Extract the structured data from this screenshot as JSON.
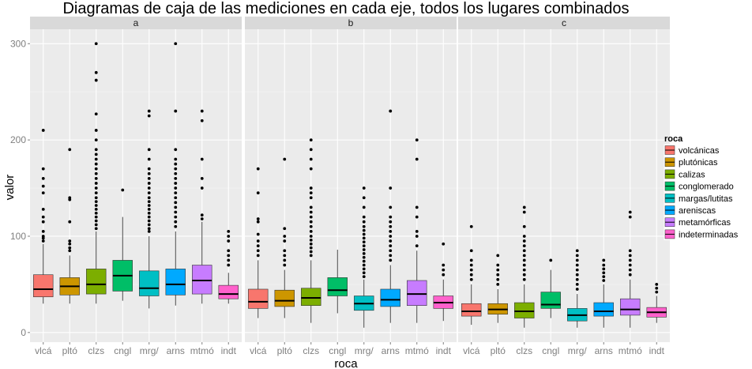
{
  "chart_data": {
    "type": "boxplot",
    "title": "Diagramas de caja de las mediciones en cada eje, todos los lugares combinados",
    "xlabel": "roca",
    "ylabel": "valor",
    "ylim": [
      -10,
      315
    ],
    "yticks": [
      0,
      100,
      200,
      300
    ],
    "categories": [
      "vlcá",
      "pltó",
      "clzs",
      "cngl",
      "mrg/",
      "arns",
      "mtmó",
      "indt"
    ],
    "legend": {
      "title": "roca",
      "position": "right",
      "entries": [
        {
          "label": "volcánicas",
          "color": "#F8766D"
        },
        {
          "label": "plutónicas",
          "color": "#CD9600"
        },
        {
          "label": "calizas",
          "color": "#7CAE00"
        },
        {
          "label": "conglomerado",
          "color": "#00BE67"
        },
        {
          "label": "margas/lutitas",
          "color": "#00BFC4"
        },
        {
          "label": "areniscas",
          "color": "#00A9FF"
        },
        {
          "label": "metamórficas",
          "color": "#C77CFF"
        },
        {
          "label": "indeterminadas",
          "color": "#FF61CC"
        }
      ]
    },
    "panels": [
      {
        "label": "a",
        "boxes": [
          {
            "min": 30,
            "q1": 37,
            "median": 45,
            "q3": 60,
            "max": 92,
            "outliers": [
              95,
              98,
              100,
              105,
              115,
              120,
              128,
              145,
              152,
              160,
              170,
              210
            ]
          },
          {
            "min": 30,
            "q1": 39,
            "median": 48,
            "q3": 57,
            "max": 80,
            "outliers": [
              85,
              88,
              92,
              95,
              115,
              138,
              140,
              190
            ]
          },
          {
            "min": 30,
            "q1": 40,
            "median": 50,
            "q3": 66,
            "max": 105,
            "outliers": [
              108,
              112,
              116,
              120,
              124,
              128,
              132,
              136,
              140,
              145,
              150,
              155,
              160,
              165,
              170,
              175,
              180,
              185,
              190,
              200,
              210,
              227,
              262,
              270,
              300
            ]
          },
          {
            "min": 33,
            "q1": 43,
            "median": 59,
            "q3": 75,
            "max": 120,
            "outliers": [
              148
            ]
          },
          {
            "min": 25,
            "q1": 38,
            "median": 46,
            "q3": 64,
            "max": 100,
            "outliers": [
              105,
              108,
              112,
              116,
              120,
              124,
              128,
              132,
              136,
              140,
              145,
              150,
              155,
              160,
              165,
              170,
              180,
              190,
              225,
              230
            ]
          },
          {
            "min": 28,
            "q1": 39,
            "median": 50,
            "q3": 66,
            "max": 105,
            "outliers": [
              110,
              115,
              120,
              125,
              130,
              135,
              140,
              145,
              150,
              155,
              160,
              165,
              170,
              175,
              180,
              190,
              230,
              300
            ]
          },
          {
            "min": 30,
            "q1": 40,
            "median": 54,
            "q3": 70,
            "max": 115,
            "outliers": [
              118,
              122,
              150,
              160,
              180,
              220,
              230
            ]
          },
          {
            "min": 30,
            "q1": 35,
            "median": 40,
            "q3": 49,
            "max": 62,
            "outliers": [
              70,
              75,
              80,
              85,
              95,
              100,
              105
            ]
          }
        ]
      },
      {
        "label": "b",
        "boxes": [
          {
            "min": 15,
            "q1": 25,
            "median": 32,
            "q3": 45,
            "max": 75,
            "outliers": [
              80,
              85,
              90,
              95,
              102,
              115,
              118,
              145,
              170
            ]
          },
          {
            "min": 15,
            "q1": 27,
            "median": 33,
            "q3": 44,
            "max": 65,
            "outliers": [
              70,
              75,
              80,
              85,
              95,
              100,
              108,
              180
            ]
          },
          {
            "min": 10,
            "q1": 28,
            "median": 36,
            "q3": 46,
            "max": 75,
            "outliers": [
              80,
              84,
              88,
              92,
              96,
              100,
              105,
              110,
              115,
              120,
              125,
              130,
              140,
              145,
              150,
              170,
              180,
              190,
              200
            ]
          },
          {
            "min": 20,
            "q1": 38,
            "median": 44,
            "q3": 57,
            "max": 86,
            "outliers": []
          },
          {
            "min": 5,
            "q1": 23,
            "median": 30,
            "q3": 38,
            "max": 55,
            "outliers": [
              58,
              62,
              66,
              70,
              74,
              78,
              82,
              86,
              90,
              94,
              98,
              102,
              106,
              110,
              115,
              120,
              130,
              140,
              150
            ]
          },
          {
            "min": 10,
            "q1": 27,
            "median": 34,
            "q3": 45,
            "max": 70,
            "outliers": [
              75,
              80,
              85,
              90,
              95,
              100,
              105,
              110,
              115,
              120,
              130,
              150,
              230
            ]
          },
          {
            "min": 10,
            "q1": 28,
            "median": 40,
            "q3": 54,
            "max": 85,
            "outliers": [
              90,
              100,
              105,
              120,
              130,
              180,
              200
            ]
          },
          {
            "min": 12,
            "q1": 25,
            "median": 31,
            "q3": 38,
            "max": 55,
            "outliers": [
              60,
              65,
              70,
              92
            ]
          }
        ]
      },
      {
        "label": "c",
        "boxes": [
          {
            "min": 8,
            "q1": 17,
            "median": 22,
            "q3": 30,
            "max": 50,
            "outliers": [
              55,
              60,
              65,
              70,
              75,
              85,
              110
            ]
          },
          {
            "min": 10,
            "q1": 19,
            "median": 24,
            "q3": 30,
            "max": 45,
            "outliers": [
              50,
              55,
              60,
              65,
              70,
              80
            ]
          },
          {
            "min": 5,
            "q1": 15,
            "median": 22,
            "q3": 31,
            "max": 50,
            "outliers": [
              55,
              60,
              65,
              70,
              75,
              80,
              85,
              90,
              95,
              100,
              110,
              125,
              130
            ]
          },
          {
            "min": 15,
            "q1": 25,
            "median": 29,
            "q3": 42,
            "max": 65,
            "outliers": [
              75
            ]
          },
          {
            "min": 5,
            "q1": 12,
            "median": 18,
            "q3": 25,
            "max": 40,
            "outliers": [
              45,
              50,
              55,
              60,
              65,
              70,
              75,
              80,
              85
            ]
          },
          {
            "min": 5,
            "q1": 17,
            "median": 22,
            "q3": 31,
            "max": 50,
            "outliers": [
              54,
              58,
              62,
              66,
              70,
              75
            ]
          },
          {
            "min": 5,
            "q1": 18,
            "median": 24,
            "q3": 35,
            "max": 55,
            "outliers": [
              60,
              65,
              70,
              75,
              80,
              85,
              120,
              125
            ]
          },
          {
            "min": 10,
            "q1": 16,
            "median": 21,
            "q3": 26,
            "max": 38,
            "outliers": [
              42,
              46,
              50
            ]
          }
        ]
      }
    ]
  }
}
